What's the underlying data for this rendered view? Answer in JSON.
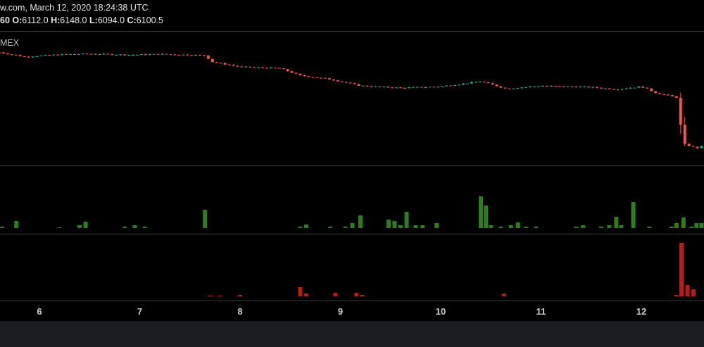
{
  "header": {
    "source_line": "w.com, March 12, 2020 18:24:38 UTC",
    "interval": "60",
    "ohlc": {
      "o_label": "O:",
      "o": "6112.0",
      "h_label": "H:",
      "h": "6148.0",
      "l_label": "L:",
      "l": "6094.0",
      "c_label": "C:",
      "c": "6100.5"
    },
    "symbol_fragment": "MEX"
  },
  "colors": {
    "up": "#26a69a",
    "down": "#ef5350",
    "buy_volume": "#2e7d1e",
    "sell_volume": "#b71c1c",
    "separator": "#3a3a3a",
    "footer": "#1b1d22"
  },
  "chart_data": {
    "type": "candlestick",
    "x_ticks": [
      "6",
      "7",
      "8",
      "9",
      "10",
      "11",
      "12"
    ],
    "price_path": [
      [
        5.6,
        7960
      ],
      [
        5.85,
        7900
      ],
      [
        6.2,
        7930
      ],
      [
        6.5,
        7940
      ],
      [
        6.9,
        7925
      ],
      [
        7.2,
        7935
      ],
      [
        7.65,
        7920
      ],
      [
        7.72,
        7830
      ],
      [
        8.0,
        7760
      ],
      [
        8.4,
        7740
      ],
      [
        8.6,
        7640
      ],
      [
        8.9,
        7590
      ],
      [
        9.2,
        7500
      ],
      [
        9.6,
        7470
      ],
      [
        10.0,
        7490
      ],
      [
        10.4,
        7560
      ],
      [
        10.65,
        7460
      ],
      [
        11.0,
        7500
      ],
      [
        11.5,
        7480
      ],
      [
        11.75,
        7450
      ],
      [
        12.0,
        7490
      ],
      [
        12.15,
        7400
      ],
      [
        12.35,
        7340
      ],
      [
        12.42,
        6700
      ],
      [
        12.55,
        6640
      ],
      [
        12.65,
        6690
      ]
    ],
    "price_range": [
      6500,
      8100
    ],
    "volume_buy": [
      [
        5.63,
        2
      ],
      [
        5.77,
        10
      ],
      [
        6.2,
        1
      ],
      [
        6.4,
        4
      ],
      [
        6.46,
        9
      ],
      [
        6.85,
        2
      ],
      [
        6.95,
        4
      ],
      [
        7.05,
        2
      ],
      [
        7.65,
        26
      ],
      [
        8.6,
        2
      ],
      [
        8.66,
        5
      ],
      [
        8.9,
        2
      ],
      [
        9.05,
        2
      ],
      [
        9.12,
        7
      ],
      [
        9.2,
        18
      ],
      [
        9.48,
        12
      ],
      [
        9.54,
        10
      ],
      [
        9.6,
        4
      ],
      [
        9.66,
        23
      ],
      [
        9.75,
        4
      ],
      [
        9.82,
        4
      ],
      [
        9.96,
        7
      ],
      [
        10.4,
        45
      ],
      [
        10.45,
        32
      ],
      [
        10.5,
        4
      ],
      [
        10.6,
        2
      ],
      [
        10.7,
        4
      ],
      [
        10.77,
        8
      ],
      [
        10.85,
        2
      ],
      [
        10.95,
        2
      ],
      [
        11.35,
        2
      ],
      [
        11.42,
        4
      ],
      [
        11.6,
        2
      ],
      [
        11.68,
        4
      ],
      [
        11.75,
        16
      ],
      [
        11.8,
        4
      ],
      [
        11.92,
        37
      ],
      [
        12.08,
        2
      ],
      [
        12.3,
        2
      ],
      [
        12.35,
        7
      ],
      [
        12.42,
        15
      ],
      [
        12.5,
        2
      ],
      [
        12.55,
        7
      ],
      [
        12.6,
        7
      ]
    ],
    "volume_sell": [
      [
        7.7,
        1
      ],
      [
        7.8,
        1
      ],
      [
        8.0,
        2
      ],
      [
        8.6,
        13
      ],
      [
        8.66,
        4
      ],
      [
        8.95,
        5
      ],
      [
        9.16,
        5
      ],
      [
        9.22,
        2
      ],
      [
        10.63,
        4
      ],
      [
        12.35,
        2
      ],
      [
        12.4,
        76
      ],
      [
        12.46,
        16
      ],
      [
        12.52,
        10
      ]
    ],
    "volume_max": 80
  }
}
